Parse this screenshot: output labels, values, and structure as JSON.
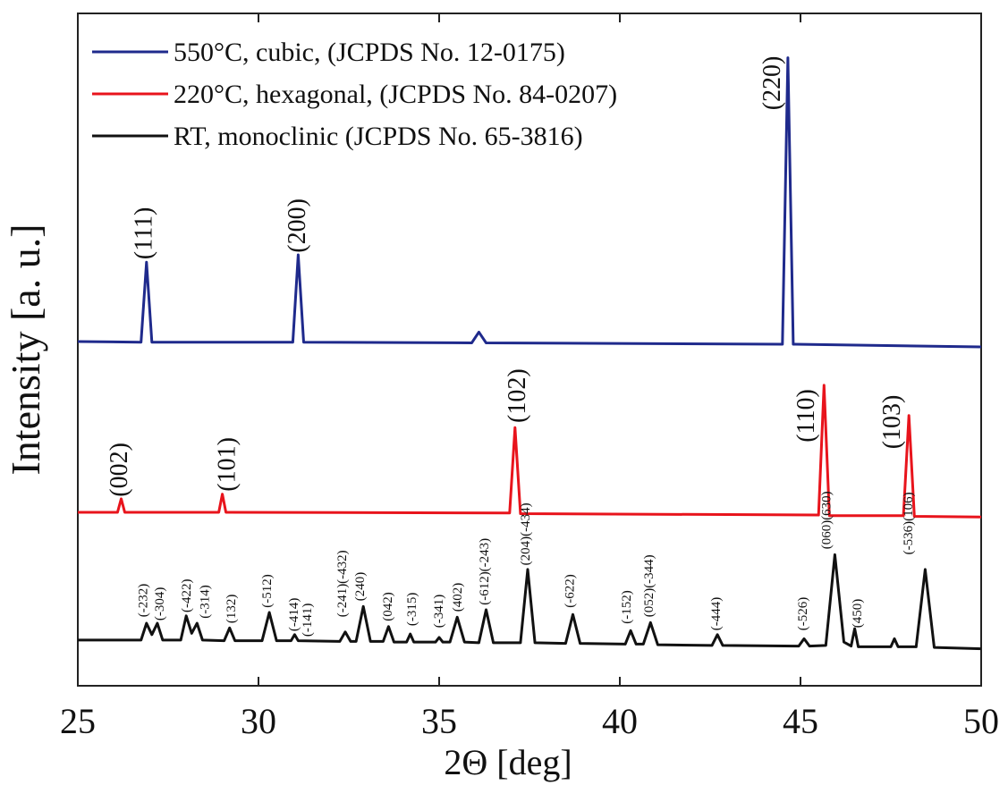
{
  "chart_data": {
    "type": "line",
    "xlabel": "2Θ [deg]",
    "ylabel": "Intensity [a. u.]",
    "xlim": [
      25,
      50
    ],
    "xticks": [
      25,
      30,
      35,
      40,
      45,
      50
    ],
    "ylim": [
      0,
      100
    ],
    "legend": "upper left",
    "series": [
      {
        "name": "550°C, cubic, (JCPDS No. 12-0175)",
        "color": "#1f2a8c",
        "x": [
          25,
          26.75,
          26.9,
          27.05,
          30.95,
          31.1,
          31.25,
          35.9,
          36.1,
          36.3,
          44.5,
          44.65,
          44.8,
          50
        ],
        "values": [
          51.2,
          51.1,
          63.0,
          51.1,
          51.1,
          64.1,
          51.1,
          51.0,
          52.6,
          51.0,
          50.8,
          93.4,
          50.8,
          50.4
        ],
        "peak_labels": [
          {
            "text": "(111)",
            "x": 26.8,
            "y": 63.4
          },
          {
            "text": "(200)",
            "x": 31.04,
            "y": 64.4
          },
          {
            "text": "(220)",
            "x": 44.18,
            "y": 85.6
          }
        ]
      },
      {
        "name": "220°C, hexagonal, (JCPDS No. 84-0207)",
        "color": "#e8141c",
        "x": [
          25,
          26.1,
          26.2,
          26.3,
          28.9,
          29.0,
          29.1,
          36.95,
          37.1,
          37.25,
          45.5,
          45.65,
          45.8,
          47.85,
          48.0,
          48.15,
          50
        ],
        "values": [
          25.8,
          25.8,
          27.8,
          25.8,
          25.8,
          28.5,
          25.8,
          25.7,
          38.4,
          25.6,
          25.4,
          44.7,
          25.3,
          25.3,
          40.2,
          25.2,
          25.1
        ],
        "peak_labels": [
          {
            "text": "(002)",
            "x": 26.11,
            "y": 28.1
          },
          {
            "text": "(101)",
            "x": 29.1,
            "y": 28.9
          },
          {
            "text": "(102)",
            "x": 37.13,
            "y": 39.1
          },
          {
            "text": "(110)",
            "x": 45.12,
            "y": 36.2
          },
          {
            "text": "(103)",
            "x": 47.5,
            "y": 35.2
          }
        ]
      },
      {
        "name": "RT, monoclinic (JCPDS No. 65-3816)",
        "color": "#111111",
        "x": [
          25,
          26.75,
          26.9,
          27.05,
          27.2,
          27.35,
          27.85,
          28.0,
          28.15,
          28.3,
          28.45,
          29.05,
          29.2,
          29.35,
          30.1,
          30.3,
          30.5,
          30.9,
          31.0,
          31.1,
          32.25,
          32.4,
          32.55,
          32.7,
          32.9,
          33.1,
          33.45,
          33.6,
          33.75,
          34.1,
          34.2,
          34.3,
          34.9,
          35.0,
          35.1,
          35.3,
          35.5,
          35.7,
          36.1,
          36.3,
          36.5,
          37.25,
          37.45,
          37.65,
          38.5,
          38.7,
          38.9,
          40.15,
          40.3,
          40.45,
          40.65,
          40.85,
          41.05,
          42.55,
          42.7,
          42.85,
          44.95,
          45.1,
          45.25,
          45.7,
          45.95,
          46.2,
          46.4,
          46.5,
          46.6,
          47.5,
          47.6,
          47.7,
          48.2,
          48.45,
          48.7,
          50
        ],
        "values": [
          6.8,
          6.8,
          9.3,
          7.6,
          9.3,
          6.8,
          6.8,
          10.4,
          7.8,
          9.3,
          6.8,
          6.7,
          8.6,
          6.7,
          6.7,
          10.9,
          6.7,
          6.7,
          7.6,
          6.7,
          6.6,
          8.0,
          6.6,
          6.6,
          11.8,
          6.6,
          6.6,
          8.8,
          6.5,
          6.5,
          7.7,
          6.5,
          6.5,
          7.2,
          6.5,
          6.5,
          10.2,
          6.5,
          6.4,
          11.3,
          6.4,
          6.4,
          17.3,
          6.4,
          6.3,
          10.6,
          6.3,
          6.2,
          8.2,
          6.2,
          6.2,
          9.4,
          6.1,
          6.0,
          7.6,
          6.0,
          5.9,
          7.0,
          5.9,
          6.0,
          19.5,
          6.5,
          5.9,
          8.5,
          5.8,
          5.8,
          7.0,
          5.8,
          5.8,
          17.3,
          5.7,
          5.5
        ],
        "peak_labels": [
          {
            "text": "(-232)",
            "x": 26.8,
            "y": 10.2
          },
          {
            "text": "(-304)",
            "x": 27.25,
            "y": 9.7
          },
          {
            "text": "(-422)",
            "x": 28.0,
            "y": 10.9
          },
          {
            "text": "(-314)",
            "x": 28.5,
            "y": 10.0
          },
          {
            "text": "(132)",
            "x": 29.23,
            "y": 9.3
          },
          {
            "text": "(-512)",
            "x": 30.22,
            "y": 11.6
          },
          {
            "text": "(-414)",
            "x": 30.97,
            "y": 8.1
          },
          {
            "text": "(-141)",
            "x": 31.34,
            "y": 7.3
          },
          {
            "text": "(-241)(-432)",
            "x": 32.3,
            "y": 10.2
          },
          {
            "text": "(240)",
            "x": 32.8,
            "y": 12.6
          },
          {
            "text": "(042)",
            "x": 33.56,
            "y": 9.6
          },
          {
            "text": "(-315)",
            "x": 34.23,
            "y": 8.9
          },
          {
            "text": "(-341)",
            "x": 34.98,
            "y": 8.6
          },
          {
            "text": "(402)",
            "x": 35.5,
            "y": 11.0
          },
          {
            "text": "(-612)(-243)",
            "x": 36.24,
            "y": 12.0
          },
          {
            "text": "(204)(-434)",
            "x": 37.38,
            "y": 17.9
          },
          {
            "text": "(-622)",
            "x": 38.6,
            "y": 11.6
          },
          {
            "text": "(-152)",
            "x": 40.17,
            "y": 9.2
          },
          {
            "text": "(052)(-344)",
            "x": 40.79,
            "y": 10.2
          },
          {
            "text": "(-444)",
            "x": 42.65,
            "y": 8.2
          },
          {
            "text": "(-526)",
            "x": 45.05,
            "y": 8.2
          },
          {
            "text": "(060)(630)",
            "x": 45.7,
            "y": 20.3
          },
          {
            "text": "(450)",
            "x": 46.56,
            "y": 8.6
          },
          {
            "text": "(-536)(106)",
            "x": 47.97,
            "y": 19.5
          }
        ]
      }
    ]
  }
}
